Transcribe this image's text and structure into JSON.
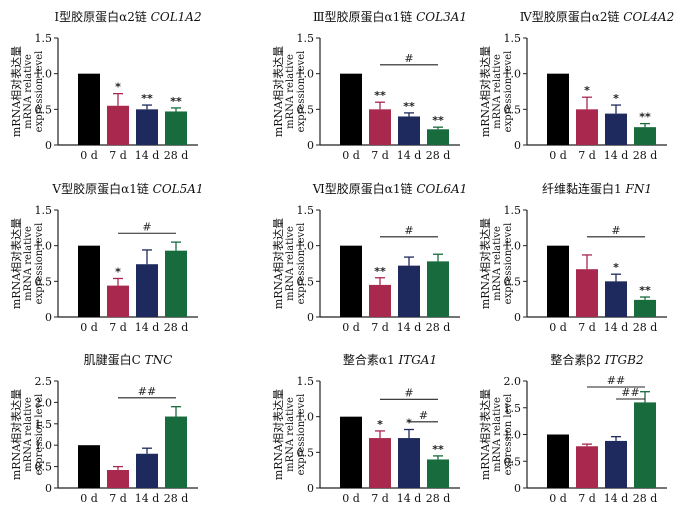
{
  "colors": {
    "bars": [
      "#000000",
      "#a8284e",
      "#1e2a5e",
      "#176b3c"
    ],
    "axis": "#222222",
    "sig": "#222222"
  },
  "chart_data": [
    {
      "type": "bar",
      "title_cn": "Ⅰ型胶原蛋白α2链",
      "title_gene": "COL1A2",
      "ylabel": [
        "mRNA相对表达量",
        "mRNA relative",
        "expression level"
      ],
      "categories": [
        "0 d",
        "7 d",
        "14 d",
        "28 d"
      ],
      "values": [
        1.0,
        0.55,
        0.5,
        0.47
      ],
      "errors": [
        0,
        0.17,
        0.06,
        0.05
      ],
      "ylim": [
        0,
        1.5
      ],
      "yticks": [
        "0",
        "0.5",
        "1.0",
        "1.5"
      ],
      "stars": [
        "",
        "*",
        "**",
        "**"
      ],
      "brackets": []
    },
    {
      "type": "bar",
      "title_cn": "Ⅲ型胶原蛋白α1链",
      "title_gene": "COL3A1",
      "ylabel": [
        "mRNA相对表达量",
        "mRNA relative",
        "expression level"
      ],
      "categories": [
        "0 d",
        "7 d",
        "14 d",
        "28 d"
      ],
      "values": [
        1.0,
        0.5,
        0.4,
        0.22
      ],
      "errors": [
        0,
        0.1,
        0.05,
        0.03
      ],
      "ylim": [
        0,
        1.5
      ],
      "yticks": [
        "0",
        "0.5",
        "1.0",
        "1.5"
      ],
      "stars": [
        "",
        "**",
        "**",
        "**"
      ],
      "brackets": [
        {
          "from": 1,
          "to": 3,
          "label": "#"
        }
      ]
    },
    {
      "type": "bar",
      "title_cn": "Ⅳ型胶原蛋白α2链",
      "title_gene": "COL4A2",
      "ylabel": [
        "mRNA相对表达量",
        "mRNA relative",
        "expression level"
      ],
      "categories": [
        "0 d",
        "7 d",
        "14 d",
        "28 d"
      ],
      "values": [
        1.0,
        0.5,
        0.44,
        0.25
      ],
      "errors": [
        0,
        0.17,
        0.12,
        0.05
      ],
      "ylim": [
        0,
        1.5
      ],
      "yticks": [
        "0",
        "0.5",
        "1.0",
        "1.5"
      ],
      "stars": [
        "",
        "*",
        "*",
        "**"
      ],
      "brackets": []
    },
    {
      "type": "bar",
      "title_cn": "Ⅴ型胶原蛋白α1链",
      "title_gene": "COL5A1",
      "ylabel": [
        "mRNA相对表达量",
        "mRNA relative",
        "expression level"
      ],
      "categories": [
        "0 d",
        "7 d",
        "14 d",
        "28 d"
      ],
      "values": [
        1.0,
        0.44,
        0.74,
        0.93
      ],
      "errors": [
        0,
        0.1,
        0.2,
        0.12
      ],
      "ylim": [
        0,
        1.5
      ],
      "yticks": [
        "0",
        "0.5",
        "1.0",
        "1.5"
      ],
      "stars": [
        "",
        "*",
        "",
        ""
      ],
      "brackets": [
        {
          "from": 1,
          "to": 3,
          "label": "#"
        }
      ]
    },
    {
      "type": "bar",
      "title_cn": "Ⅵ型胶原蛋白α1链",
      "title_gene": "COL6A1",
      "ylabel": [
        "mRNA相对表达量",
        "mRNA relative",
        "expression level"
      ],
      "categories": [
        "0 d",
        "7 d",
        "14 d",
        "28 d"
      ],
      "values": [
        1.0,
        0.45,
        0.72,
        0.78
      ],
      "errors": [
        0,
        0.1,
        0.12,
        0.1
      ],
      "ylim": [
        0,
        1.5
      ],
      "yticks": [
        "0",
        "0.5",
        "1.0",
        "1.5"
      ],
      "stars": [
        "",
        "**",
        "",
        ""
      ],
      "brackets": [
        {
          "from": 1,
          "to": 3,
          "label": "#"
        }
      ]
    },
    {
      "type": "bar",
      "title_cn": "纤维黏连蛋白1",
      "title_gene": "FN1",
      "ylabel": [
        "mRNA相对表达量",
        "mRNA relative",
        "expression level"
      ],
      "categories": [
        "0 d",
        "7 d",
        "14 d",
        "28 d"
      ],
      "values": [
        1.0,
        0.67,
        0.5,
        0.24
      ],
      "errors": [
        0,
        0.2,
        0.1,
        0.04
      ],
      "ylim": [
        0,
        1.5
      ],
      "yticks": [
        "0",
        "0.5",
        "1.0",
        "1.5"
      ],
      "stars": [
        "",
        "",
        "*",
        "**"
      ],
      "brackets": [
        {
          "from": 1,
          "to": 3,
          "label": "#"
        }
      ]
    },
    {
      "type": "bar",
      "title_cn": "肌腱蛋白C",
      "title_gene": "TNC",
      "ylabel": [
        "mRNA相对表达量",
        "mRNA relative",
        "expression level"
      ],
      "categories": [
        "0 d",
        "7 d",
        "14 d",
        "28 d"
      ],
      "values": [
        1.0,
        0.42,
        0.8,
        1.67
      ],
      "errors": [
        0,
        0.08,
        0.13,
        0.23
      ],
      "ylim": [
        0,
        2.5
      ],
      "yticks": [
        "0",
        "0.5",
        "1.0",
        "1.5",
        "2.0",
        "2.5"
      ],
      "stars": [
        "",
        "",
        "",
        ""
      ],
      "brackets": [
        {
          "from": 1,
          "to": 3,
          "label": "##"
        }
      ]
    },
    {
      "type": "bar",
      "title_cn": "整合素α1",
      "title_gene": "ITGA1",
      "ylabel": [
        "mRNA相对表达量",
        "mRNA relative",
        "expression level"
      ],
      "categories": [
        "0 d",
        "7 d",
        "14 d",
        "28 d"
      ],
      "values": [
        1.0,
        0.7,
        0.7,
        0.4
      ],
      "errors": [
        0,
        0.1,
        0.12,
        0.05
      ],
      "ylim": [
        0,
        1.5
      ],
      "yticks": [
        "0",
        "0.5",
        "1.0",
        "1.5"
      ],
      "stars": [
        "",
        "*",
        "*",
        "**"
      ],
      "brackets": [
        {
          "from": 1,
          "to": 3,
          "label": "#"
        },
        {
          "from": 2,
          "to": 3,
          "label": "#"
        }
      ]
    },
    {
      "type": "bar",
      "title_cn": "整合素β2",
      "title_gene": "ITGB2",
      "ylabel": [
        "mRNA相对表达量",
        "mRNA relative",
        "expression level"
      ],
      "categories": [
        "0 d",
        "7 d",
        "14 d",
        "28 d"
      ],
      "values": [
        1.0,
        0.78,
        0.88,
        1.6
      ],
      "errors": [
        0,
        0.04,
        0.08,
        0.2
      ],
      "ylim": [
        0,
        2.0
      ],
      "yticks": [
        "0",
        "0.5",
        "1.0",
        "1.5",
        "2.0"
      ],
      "stars": [
        "",
        "",
        "",
        ""
      ],
      "brackets": [
        {
          "from": 1,
          "to": 3,
          "label": "##"
        },
        {
          "from": 2,
          "to": 3,
          "label": "##"
        }
      ]
    }
  ]
}
